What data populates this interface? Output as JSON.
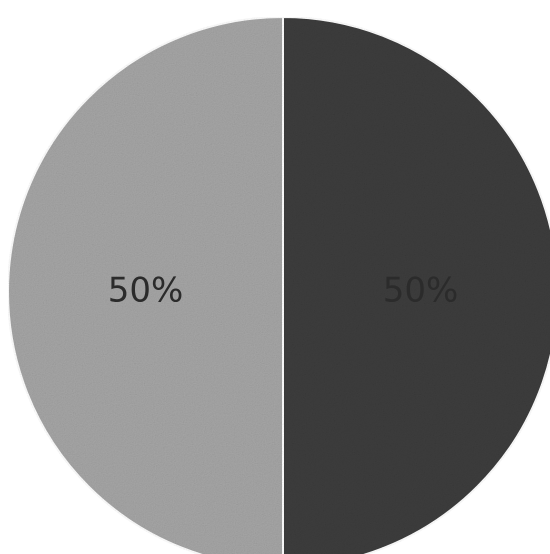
{
  "chart_data": {
    "type": "pie",
    "title": "",
    "categories": [
      "",
      ""
    ],
    "values": [
      50,
      50
    ],
    "labels": [
      "50%",
      "50%"
    ],
    "colors": [
      "#a6a6a6",
      "#3d3d3d"
    ],
    "legend": "none"
  }
}
